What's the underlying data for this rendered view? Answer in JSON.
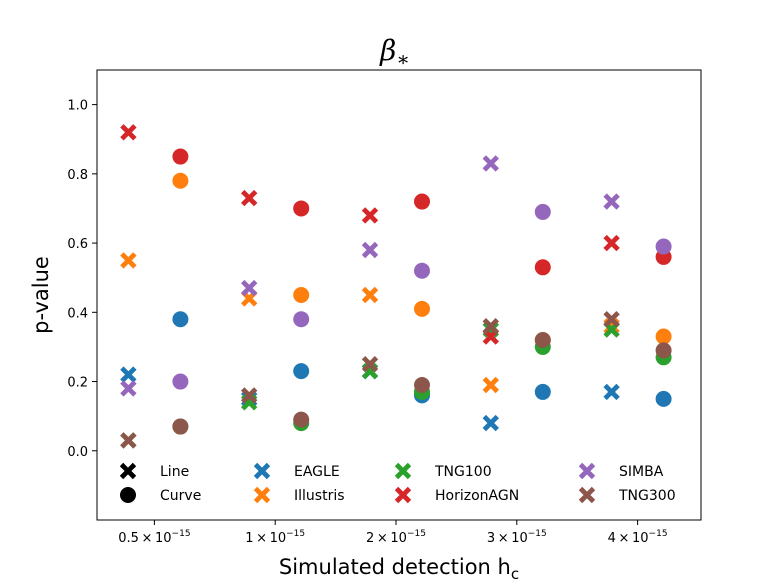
{
  "chart_data": {
    "type": "scatter",
    "title": "β∗",
    "title_main": "β",
    "title_sub": "∗",
    "xlabel": "Simulated detection h",
    "xlabel_sub": "c",
    "ylabel": "p-value",
    "ylim": [
      -0.2,
      1.1
    ],
    "yticks": [
      "0.0",
      "0.2",
      "0.4",
      "0.6",
      "0.8",
      "1.0"
    ],
    "ytick_values": [
      0.0,
      0.2,
      0.4,
      0.6,
      0.8,
      1.0
    ],
    "categories": [
      {
        "mantissa": "0.5",
        "exp": "−15"
      },
      {
        "mantissa": "1",
        "exp": "−15"
      },
      {
        "mantissa": "2",
        "exp": "−15"
      },
      {
        "mantissa": "3",
        "exp": "−15"
      },
      {
        "mantissa": "4",
        "exp": "−15"
      }
    ],
    "marker_legend": [
      {
        "label": "Line",
        "marker": "x"
      },
      {
        "label": "Curve",
        "marker": "o"
      }
    ],
    "series": [
      {
        "name": "EAGLE",
        "color": "#1f77b4",
        "line": [
          0.22,
          0.15,
          0.23,
          0.08,
          0.17
        ],
        "curve": [
          0.38,
          0.23,
          0.16,
          0.17,
          0.15
        ]
      },
      {
        "name": "Illustris",
        "color": "#ff7f0e",
        "line": [
          0.55,
          0.44,
          0.45,
          0.19,
          0.36
        ],
        "curve": [
          0.78,
          0.45,
          0.41,
          0.32,
          0.33
        ]
      },
      {
        "name": "TNG100",
        "color": "#2ca02c",
        "line": [
          0.03,
          0.14,
          0.23,
          0.35,
          0.35
        ],
        "curve": [
          0.07,
          0.08,
          0.17,
          0.3,
          0.27
        ]
      },
      {
        "name": "HorizonAGN",
        "color": "#d62728",
        "line": [
          0.92,
          0.73,
          0.68,
          0.33,
          0.6
        ],
        "curve": [
          0.85,
          0.7,
          0.72,
          0.53,
          0.56
        ]
      },
      {
        "name": "SIMBA",
        "color": "#9467bd",
        "line": [
          0.18,
          0.47,
          0.58,
          0.83,
          0.72
        ],
        "curve": [
          0.2,
          0.38,
          0.52,
          0.69,
          0.59
        ]
      },
      {
        "name": "TNG300",
        "color": "#8c564b",
        "line": [
          0.03,
          0.16,
          0.25,
          0.36,
          0.38
        ],
        "curve": [
          0.07,
          0.09,
          0.19,
          0.32,
          0.29
        ]
      }
    ]
  }
}
